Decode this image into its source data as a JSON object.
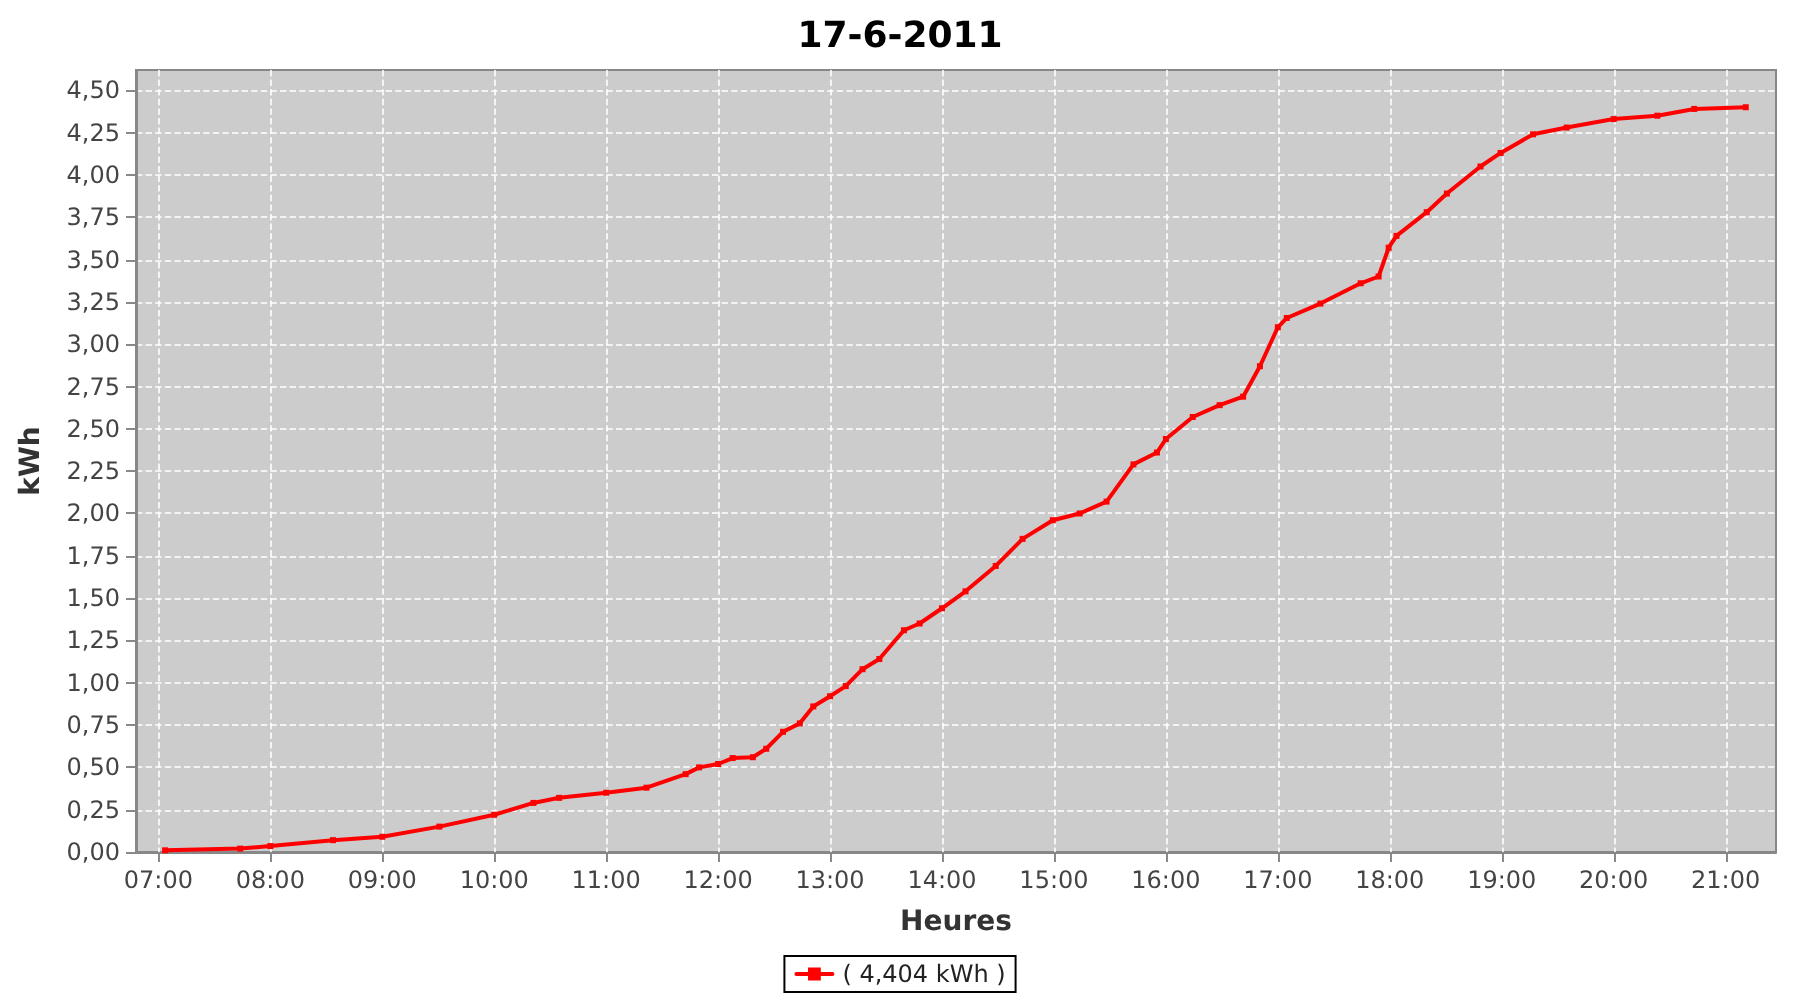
{
  "chart_data": {
    "type": "line",
    "title": "17-6-2011",
    "xlabel": "Heures",
    "ylabel": "kWh",
    "xlim": [
      6.8,
      21.45
    ],
    "ylim": [
      0,
      4.62
    ],
    "xticks": [
      {
        "value": 7,
        "label": "07:00"
      },
      {
        "value": 8,
        "label": "08:00"
      },
      {
        "value": 9,
        "label": "09:00"
      },
      {
        "value": 10,
        "label": "10:00"
      },
      {
        "value": 11,
        "label": "11:00"
      },
      {
        "value": 12,
        "label": "12:00"
      },
      {
        "value": 13,
        "label": "13:00"
      },
      {
        "value": 14,
        "label": "14:00"
      },
      {
        "value": 15,
        "label": "15:00"
      },
      {
        "value": 16,
        "label": "16:00"
      },
      {
        "value": 17,
        "label": "17:00"
      },
      {
        "value": 18,
        "label": "18:00"
      },
      {
        "value": 19,
        "label": "19:00"
      },
      {
        "value": 20,
        "label": "20:00"
      },
      {
        "value": 21,
        "label": "21:00"
      }
    ],
    "yticks": [
      {
        "value": 0,
        "label": "0,00"
      },
      {
        "value": 0.25,
        "label": "0,25"
      },
      {
        "value": 0.5,
        "label": "0,50"
      },
      {
        "value": 0.75,
        "label": "0,75"
      },
      {
        "value": 1,
        "label": "1,00"
      },
      {
        "value": 1.25,
        "label": "1,25"
      },
      {
        "value": 1.5,
        "label": "1,50"
      },
      {
        "value": 1.75,
        "label": "1,75"
      },
      {
        "value": 2,
        "label": "2,00"
      },
      {
        "value": 2.25,
        "label": "2,25"
      },
      {
        "value": 2.5,
        "label": "2,50"
      },
      {
        "value": 2.75,
        "label": "2,75"
      },
      {
        "value": 3,
        "label": "3,00"
      },
      {
        "value": 3.25,
        "label": "3,25"
      },
      {
        "value": 3.5,
        "label": "3,50"
      },
      {
        "value": 3.75,
        "label": "3,75"
      },
      {
        "value": 4,
        "label": "4,00"
      },
      {
        "value": 4.25,
        "label": "4,25"
      },
      {
        "value": 4.5,
        "label": "4,50"
      }
    ],
    "grid": true,
    "legend": "bottom",
    "marker": "square",
    "line_style": "solid",
    "series": [
      {
        "name": "( 4,404 kWh )",
        "color": "#ff0000",
        "x": [
          7.06,
          7.73,
          8.0,
          8.56,
          9.0,
          9.51,
          10.0,
          10.35,
          10.58,
          11.0,
          11.36,
          11.71,
          11.83,
          12.0,
          12.13,
          12.31,
          12.43,
          12.58,
          12.73,
          12.85,
          13.0,
          13.14,
          13.29,
          13.44,
          13.66,
          13.8,
          14.0,
          14.21,
          14.48,
          14.72,
          14.99,
          15.23,
          15.47,
          15.71,
          15.92,
          16.0,
          16.24,
          16.48,
          16.69,
          16.84,
          17.0,
          17.08,
          17.38,
          17.74,
          17.9,
          17.99,
          18.06,
          18.33,
          18.51,
          18.81,
          18.99,
          19.28,
          19.58,
          20.0,
          20.39,
          20.72,
          21.18
        ],
        "values": [
          0.01,
          0.02,
          0.035,
          0.07,
          0.09,
          0.15,
          0.22,
          0.29,
          0.32,
          0.35,
          0.38,
          0.46,
          0.5,
          0.52,
          0.555,
          0.56,
          0.61,
          0.71,
          0.76,
          0.86,
          0.92,
          0.98,
          1.08,
          1.14,
          1.31,
          1.35,
          1.44,
          1.54,
          1.69,
          1.85,
          1.96,
          2.0,
          2.07,
          2.29,
          2.36,
          2.44,
          2.57,
          2.64,
          2.69,
          2.87,
          3.1,
          3.155,
          3.24,
          3.36,
          3.4,
          3.57,
          3.64,
          3.78,
          3.89,
          4.05,
          4.13,
          4.24,
          4.28,
          4.33,
          4.35,
          4.39,
          4.4
        ]
      }
    ]
  }
}
